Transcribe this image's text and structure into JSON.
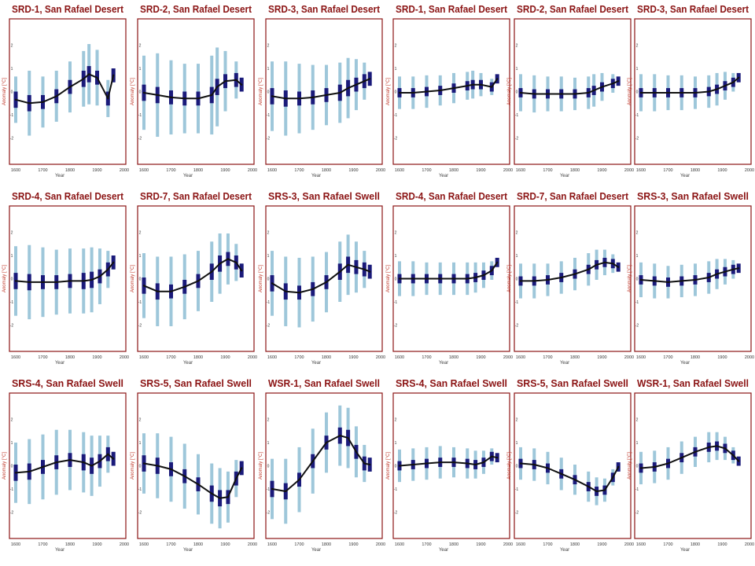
{
  "style": {
    "frame_color": "#8b1414",
    "title_color": "#8b1414",
    "outer_bar_color": "#9ec7da",
    "inner_bar_color": "#1a1a7a",
    "line_color": "#111111",
    "ylabel_color": "#c0392b"
  },
  "chart_data": [
    {
      "type": "line",
      "title": "SRD-1, San Rafael Desert",
      "xlabel": "Year",
      "ylabel": "Anomaly [°C]",
      "xlim": [
        1600,
        2000
      ],
      "ylim": [
        -3,
        3
      ],
      "xticks": [
        1600,
        1700,
        1800,
        1900,
        2000
      ],
      "yticks": [
        -2,
        -1,
        0,
        1,
        2
      ],
      "x": [
        1600,
        1650,
        1700,
        1750,
        1800,
        1850,
        1870,
        1900,
        1940,
        1960
      ],
      "y": [
        -0.35,
        -0.5,
        -0.45,
        -0.2,
        0.2,
        0.55,
        0.75,
        0.6,
        -0.3,
        0.7
      ],
      "inner": [
        0.35,
        0.35,
        0.3,
        0.3,
        0.3,
        0.35,
        0.35,
        0.3,
        0.3,
        0.3
      ],
      "outer": [
        1.0,
        1.4,
        1.1,
        1.1,
        1.1,
        1.2,
        1.3,
        1.2,
        0.8,
        0.3
      ]
    },
    {
      "type": "line",
      "title": "SRD-2, San Rafael Desert",
      "xlabel": "Year",
      "ylabel": "Anomaly [°C]",
      "xlim": [
        1600,
        2000
      ],
      "ylim": [
        -3,
        3
      ],
      "xticks": [
        1600,
        1700,
        1800,
        1900,
        2000
      ],
      "yticks": [
        -2,
        -1,
        0,
        1,
        2
      ],
      "x": [
        1600,
        1650,
        1700,
        1750,
        1800,
        1850,
        1870,
        1900,
        1940,
        1960
      ],
      "y": [
        -0.05,
        -0.15,
        -0.25,
        -0.3,
        -0.3,
        -0.15,
        0.2,
        0.45,
        0.5,
        0.3
      ],
      "inner": [
        0.35,
        0.35,
        0.3,
        0.3,
        0.3,
        0.35,
        0.35,
        0.3,
        0.3,
        0.3
      ],
      "outer": [
        1.6,
        1.8,
        1.6,
        1.5,
        1.5,
        1.7,
        1.7,
        1.3,
        0.8,
        0.3
      ]
    },
    {
      "type": "line",
      "title": "SRD-3, San Rafael Desert",
      "xlabel": "Year",
      "ylabel": "Anomaly [°C]",
      "xlim": [
        1600,
        2000
      ],
      "ylim": [
        -3,
        3
      ],
      "xticks": [
        1600,
        1700,
        1800,
        1900,
        2000
      ],
      "yticks": [
        -2,
        -1,
        0,
        1,
        2
      ],
      "x": [
        1600,
        1650,
        1700,
        1750,
        1800,
        1850,
        1880,
        1910,
        1940,
        1960
      ],
      "y": [
        -0.2,
        -0.3,
        -0.3,
        -0.25,
        -0.15,
        -0.05,
        0.15,
        0.3,
        0.45,
        0.55
      ],
      "inner": [
        0.35,
        0.35,
        0.3,
        0.3,
        0.3,
        0.35,
        0.35,
        0.3,
        0.3,
        0.3
      ],
      "outer": [
        1.5,
        1.6,
        1.5,
        1.4,
        1.3,
        1.3,
        1.3,
        1.1,
        0.8,
        0.3
      ]
    },
    {
      "type": "line",
      "title": "SRD-1, San Rafael Desert",
      "xlabel": "Year",
      "ylabel": "Anomaly [°C]",
      "xlim": [
        1600,
        2000
      ],
      "ylim": [
        -3,
        3
      ],
      "xticks": [
        1600,
        1700,
        1800,
        1900,
        2000
      ],
      "yticks": [
        -2,
        -1,
        0,
        1,
        2
      ],
      "x": [
        1600,
        1650,
        1700,
        1750,
        1800,
        1850,
        1870,
        1900,
        1940,
        1960
      ],
      "y": [
        -0.05,
        -0.05,
        0.0,
        0.05,
        0.15,
        0.25,
        0.3,
        0.3,
        0.2,
        0.55
      ],
      "inner": [
        0.2,
        0.2,
        0.2,
        0.2,
        0.2,
        0.2,
        0.2,
        0.2,
        0.2,
        0.2
      ],
      "outer": [
        0.7,
        0.7,
        0.7,
        0.65,
        0.65,
        0.6,
        0.6,
        0.5,
        0.35,
        0.15
      ]
    },
    {
      "type": "line",
      "title": "SRD-2, San Rafael Desert",
      "xlabel": "Year",
      "ylabel": "Anomaly [°C]",
      "xlim": [
        1600,
        2000
      ],
      "ylim": [
        -3,
        3
      ],
      "xticks": [
        1600,
        1700,
        1800,
        1900,
        2000
      ],
      "yticks": [
        -2,
        -1,
        0,
        1,
        2
      ],
      "x": [
        1600,
        1650,
        1700,
        1750,
        1800,
        1850,
        1870,
        1900,
        1940,
        1960
      ],
      "y": [
        -0.05,
        -0.1,
        -0.1,
        -0.1,
        -0.1,
        -0.05,
        0.05,
        0.2,
        0.35,
        0.45
      ],
      "inner": [
        0.2,
        0.2,
        0.2,
        0.2,
        0.2,
        0.2,
        0.2,
        0.2,
        0.2,
        0.2
      ],
      "outer": [
        0.8,
        0.8,
        0.75,
        0.75,
        0.7,
        0.7,
        0.7,
        0.6,
        0.4,
        0.15
      ]
    },
    {
      "type": "line",
      "title": "SRD-3, San Rafael Desert",
      "xlabel": "Year",
      "ylabel": "Anomaly [°C]",
      "xlim": [
        1600,
        2000
      ],
      "ylim": [
        -3,
        3
      ],
      "xticks": [
        1600,
        1700,
        1800,
        1900,
        2000
      ],
      "yticks": [
        -2,
        -1,
        0,
        1,
        2
      ],
      "x": [
        1600,
        1650,
        1700,
        1750,
        1800,
        1850,
        1880,
        1910,
        1940,
        1960
      ],
      "y": [
        -0.05,
        -0.05,
        -0.05,
        -0.05,
        -0.05,
        0.0,
        0.1,
        0.25,
        0.4,
        0.6
      ],
      "inner": [
        0.2,
        0.2,
        0.2,
        0.2,
        0.2,
        0.2,
        0.2,
        0.2,
        0.2,
        0.2
      ],
      "outer": [
        0.8,
        0.8,
        0.75,
        0.75,
        0.7,
        0.7,
        0.7,
        0.6,
        0.4,
        0.15
      ]
    },
    {
      "type": "line",
      "title": "SRD-4, San Rafael Desert",
      "xlabel": "Year",
      "ylabel": "Anomaly [°C]",
      "xlim": [
        1600,
        2000
      ],
      "ylim": [
        -3,
        3
      ],
      "xticks": [
        1600,
        1700,
        1800,
        1900,
        2000
      ],
      "yticks": [
        -2,
        -1,
        0,
        1,
        2
      ],
      "x": [
        1600,
        1650,
        1700,
        1750,
        1800,
        1850,
        1880,
        1910,
        1940,
        1960
      ],
      "y": [
        -0.1,
        -0.15,
        -0.15,
        -0.15,
        -0.1,
        -0.1,
        -0.05,
        0.1,
        0.4,
        0.7
      ],
      "inner": [
        0.35,
        0.35,
        0.3,
        0.3,
        0.3,
        0.35,
        0.35,
        0.3,
        0.3,
        0.3
      ],
      "outer": [
        1.5,
        1.6,
        1.5,
        1.4,
        1.4,
        1.4,
        1.4,
        1.2,
        0.8,
        0.3
      ]
    },
    {
      "type": "line",
      "title": "SRD-7, San Rafael Desert",
      "xlabel": "Year",
      "ylabel": "Anomaly [°C]",
      "xlim": [
        1600,
        2000
      ],
      "ylim": [
        -3,
        3
      ],
      "xticks": [
        1600,
        1700,
        1800,
        1900,
        2000
      ],
      "yticks": [
        -2,
        -1,
        0,
        1,
        2
      ],
      "x": [
        1600,
        1650,
        1700,
        1750,
        1800,
        1850,
        1880,
        1910,
        1940,
        1960
      ],
      "y": [
        -0.3,
        -0.55,
        -0.55,
        -0.35,
        -0.1,
        0.3,
        0.65,
        0.85,
        0.7,
        0.35
      ],
      "inner": [
        0.35,
        0.35,
        0.3,
        0.3,
        0.3,
        0.35,
        0.35,
        0.3,
        0.3,
        0.3
      ],
      "outer": [
        1.4,
        1.5,
        1.5,
        1.4,
        1.3,
        1.3,
        1.3,
        1.1,
        0.8,
        0.3
      ]
    },
    {
      "type": "line",
      "title": "SRS-3, San Rafael Swell",
      "xlabel": "Year",
      "ylabel": "Anomaly [°C]",
      "xlim": [
        1600,
        2000
      ],
      "ylim": [
        -3,
        3
      ],
      "xticks": [
        1600,
        1700,
        1800,
        1900,
        2000
      ],
      "yticks": [
        -2,
        -1,
        0,
        1,
        2
      ],
      "x": [
        1600,
        1650,
        1700,
        1750,
        1800,
        1850,
        1880,
        1910,
        1940,
        1960
      ],
      "y": [
        -0.2,
        -0.55,
        -0.6,
        -0.45,
        -0.15,
        0.3,
        0.6,
        0.5,
        0.4,
        0.3
      ],
      "inner": [
        0.35,
        0.35,
        0.3,
        0.3,
        0.3,
        0.35,
        0.35,
        0.3,
        0.3,
        0.3
      ],
      "outer": [
        1.4,
        1.5,
        1.5,
        1.4,
        1.3,
        1.3,
        1.3,
        1.1,
        0.8,
        0.3
      ]
    },
    {
      "type": "line",
      "title": "SRD-4, San Rafael Desert",
      "xlabel": "Year",
      "ylabel": "Anomaly [°C]",
      "xlim": [
        1600,
        2000
      ],
      "ylim": [
        -3,
        3
      ],
      "xticks": [
        1600,
        1700,
        1800,
        1900,
        2000
      ],
      "yticks": [
        -2,
        -1,
        0,
        1,
        2
      ],
      "x": [
        1600,
        1650,
        1700,
        1750,
        1800,
        1850,
        1880,
        1910,
        1940,
        1960
      ],
      "y": [
        0.0,
        0.0,
        0.0,
        0.0,
        0.0,
        0.0,
        0.05,
        0.15,
        0.35,
        0.7
      ],
      "inner": [
        0.2,
        0.2,
        0.2,
        0.2,
        0.2,
        0.2,
        0.2,
        0.2,
        0.2,
        0.2
      ],
      "outer": [
        0.75,
        0.75,
        0.7,
        0.7,
        0.7,
        0.7,
        0.65,
        0.55,
        0.4,
        0.15
      ]
    },
    {
      "type": "line",
      "title": "SRD-7, San Rafael Desert",
      "xlabel": "Year",
      "ylabel": "Anomaly [°C]",
      "xlim": [
        1600,
        2000
      ],
      "ylim": [
        -3,
        3
      ],
      "xticks": [
        1600,
        1700,
        1800,
        1900,
        2000
      ],
      "yticks": [
        -2,
        -1,
        0,
        1,
        2
      ],
      "x": [
        1600,
        1650,
        1700,
        1750,
        1800,
        1850,
        1880,
        1910,
        1940,
        1960
      ],
      "y": [
        -0.1,
        -0.1,
        -0.05,
        0.05,
        0.2,
        0.4,
        0.6,
        0.7,
        0.65,
        0.5
      ],
      "inner": [
        0.2,
        0.2,
        0.2,
        0.2,
        0.2,
        0.2,
        0.2,
        0.2,
        0.2,
        0.2
      ],
      "outer": [
        0.75,
        0.75,
        0.7,
        0.7,
        0.7,
        0.7,
        0.65,
        0.55,
        0.4,
        0.15
      ]
    },
    {
      "type": "line",
      "title": "SRS-3, San Rafael Swell",
      "xlabel": "Year",
      "ylabel": "Anomaly [°C]",
      "xlim": [
        1600,
        2000
      ],
      "ylim": [
        -3,
        3
      ],
      "xticks": [
        1600,
        1700,
        1800,
        1900,
        2000
      ],
      "yticks": [
        -2,
        -1,
        0,
        1,
        2
      ],
      "x": [
        1600,
        1650,
        1700,
        1750,
        1800,
        1850,
        1880,
        1910,
        1940,
        1960
      ],
      "y": [
        -0.05,
        -0.1,
        -0.15,
        -0.1,
        -0.05,
        0.05,
        0.2,
        0.3,
        0.4,
        0.45
      ],
      "inner": [
        0.2,
        0.2,
        0.2,
        0.2,
        0.2,
        0.2,
        0.2,
        0.2,
        0.2,
        0.2
      ],
      "outer": [
        0.75,
        0.75,
        0.7,
        0.7,
        0.7,
        0.7,
        0.65,
        0.55,
        0.4,
        0.15
      ]
    },
    {
      "type": "line",
      "title": "SRS-4, San Rafael Swell",
      "xlabel": "Year",
      "ylabel": "Anomaly [°C]",
      "xlim": [
        1600,
        2000
      ],
      "ylim": [
        -3,
        3
      ],
      "xticks": [
        1600,
        1700,
        1800,
        1900,
        2000
      ],
      "yticks": [
        -2,
        -1,
        0,
        1,
        2
      ],
      "x": [
        1600,
        1650,
        1700,
        1750,
        1800,
        1850,
        1880,
        1910,
        1940,
        1960
      ],
      "y": [
        -0.3,
        -0.25,
        -0.05,
        0.15,
        0.25,
        0.15,
        0.0,
        0.2,
        0.5,
        0.3
      ],
      "inner": [
        0.35,
        0.35,
        0.3,
        0.3,
        0.3,
        0.35,
        0.35,
        0.3,
        0.3,
        0.3
      ],
      "outer": [
        1.3,
        1.4,
        1.4,
        1.4,
        1.3,
        1.3,
        1.3,
        1.1,
        0.8,
        0.3
      ]
    },
    {
      "type": "line",
      "title": "SRS-5, San Rafael Swell",
      "xlabel": "Year",
      "ylabel": "Anomaly [°C]",
      "xlim": [
        1600,
        2000
      ],
      "ylim": [
        -3,
        3
      ],
      "xticks": [
        1600,
        1700,
        1800,
        1900,
        2000
      ],
      "yticks": [
        -2,
        -1,
        0,
        1,
        2
      ],
      "x": [
        1600,
        1650,
        1700,
        1750,
        1800,
        1850,
        1880,
        1910,
        1940,
        1960
      ],
      "y": [
        0.1,
        0.0,
        -0.15,
        -0.45,
        -0.8,
        -1.2,
        -1.4,
        -1.35,
        -0.55,
        -0.1
      ],
      "inner": [
        0.35,
        0.35,
        0.3,
        0.3,
        0.3,
        0.35,
        0.35,
        0.3,
        0.3,
        0.3
      ],
      "outer": [
        1.3,
        1.4,
        1.4,
        1.4,
        1.3,
        1.3,
        1.3,
        1.1,
        0.8,
        0.3
      ]
    },
    {
      "type": "line",
      "title": "WSR-1, San Rafael Swell",
      "xlabel": "Year",
      "ylabel": "Anomaly [°C]",
      "xlim": [
        1600,
        2000
      ],
      "ylim": [
        -3,
        3
      ],
      "xticks": [
        1600,
        1700,
        1800,
        1900,
        2000
      ],
      "yticks": [
        -2,
        -1,
        0,
        1,
        2
      ],
      "x": [
        1600,
        1650,
        1700,
        1750,
        1800,
        1850,
        1880,
        1910,
        1940,
        1960
      ],
      "y": [
        -1.0,
        -1.1,
        -0.6,
        0.2,
        1.0,
        1.3,
        1.2,
        0.6,
        0.1,
        0.05
      ],
      "inner": [
        0.35,
        0.35,
        0.3,
        0.3,
        0.3,
        0.35,
        0.35,
        0.3,
        0.3,
        0.3
      ],
      "outer": [
        1.3,
        1.4,
        1.4,
        1.4,
        1.3,
        1.3,
        1.3,
        1.1,
        0.8,
        0.3
      ]
    },
    {
      "type": "line",
      "title": "SRS-4, San Rafael Swell",
      "xlabel": "Year",
      "ylabel": "Anomaly [°C]",
      "xlim": [
        1600,
        2000
      ],
      "ylim": [
        -3,
        3
      ],
      "xticks": [
        1600,
        1700,
        1800,
        1900,
        2000
      ],
      "yticks": [
        -2,
        -1,
        0,
        1,
        2
      ],
      "x": [
        1600,
        1650,
        1700,
        1750,
        1800,
        1850,
        1880,
        1910,
        1940,
        1960
      ],
      "y": [
        0.0,
        0.05,
        0.1,
        0.15,
        0.15,
        0.1,
        0.05,
        0.15,
        0.4,
        0.35
      ],
      "inner": [
        0.2,
        0.2,
        0.2,
        0.2,
        0.2,
        0.2,
        0.2,
        0.2,
        0.2,
        0.2
      ],
      "outer": [
        0.7,
        0.7,
        0.7,
        0.7,
        0.65,
        0.65,
        0.6,
        0.5,
        0.35,
        0.15
      ]
    },
    {
      "type": "line",
      "title": "SRS-5, San Rafael Swell",
      "xlabel": "Year",
      "ylabel": "Anomaly [°C]",
      "xlim": [
        1600,
        2000
      ],
      "ylim": [
        -3,
        3
      ],
      "xticks": [
        1600,
        1700,
        1800,
        1900,
        2000
      ],
      "yticks": [
        -2,
        -1,
        0,
        1,
        2
      ],
      "x": [
        1600,
        1650,
        1700,
        1750,
        1800,
        1850,
        1880,
        1910,
        1940,
        1960
      ],
      "y": [
        0.1,
        0.05,
        -0.1,
        -0.35,
        -0.6,
        -0.9,
        -1.1,
        -1.05,
        -0.5,
        -0.05
      ],
      "inner": [
        0.2,
        0.2,
        0.2,
        0.2,
        0.2,
        0.2,
        0.2,
        0.2,
        0.2,
        0.2
      ],
      "outer": [
        0.7,
        0.7,
        0.7,
        0.7,
        0.65,
        0.65,
        0.6,
        0.5,
        0.35,
        0.15
      ]
    },
    {
      "type": "line",
      "title": "WSR-1, San Rafael Swell",
      "xlabel": "Year",
      "ylabel": "Anomaly [°C]",
      "xlim": [
        1600,
        2000
      ],
      "ylim": [
        -3,
        3
      ],
      "xticks": [
        1600,
        1700,
        1800,
        1900,
        2000
      ],
      "yticks": [
        -2,
        -1,
        0,
        1,
        2
      ],
      "x": [
        1600,
        1650,
        1700,
        1750,
        1800,
        1850,
        1880,
        1910,
        1940,
        1960
      ],
      "y": [
        -0.1,
        -0.05,
        0.1,
        0.35,
        0.6,
        0.8,
        0.85,
        0.75,
        0.45,
        0.2
      ],
      "inner": [
        0.2,
        0.2,
        0.2,
        0.2,
        0.2,
        0.2,
        0.2,
        0.2,
        0.2,
        0.2
      ],
      "outer": [
        0.7,
        0.7,
        0.7,
        0.7,
        0.65,
        0.65,
        0.6,
        0.5,
        0.35,
        0.15
      ]
    }
  ]
}
